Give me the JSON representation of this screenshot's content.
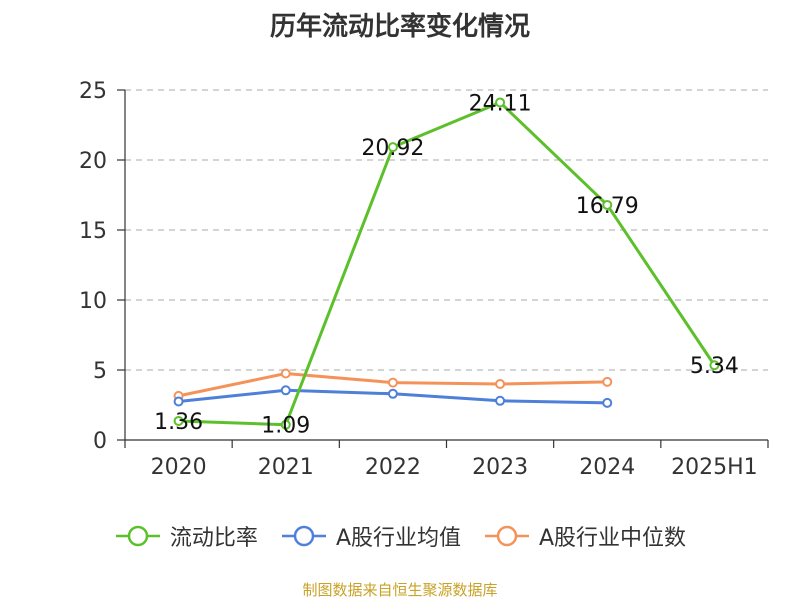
{
  "title": "历年流动比率变化情况",
  "source": "制图数据来自恒生聚源数据库",
  "colors": {
    "series": [
      "#5cc02b",
      "#4e7fd9",
      "#f5925a"
    ],
    "grid": "#bbbbbb",
    "axis": "#333333",
    "text": "#333333",
    "source": "#c9a227"
  },
  "chart_data": {
    "type": "line",
    "title": "历年流动比率变化情况",
    "categories": [
      "2020",
      "2021",
      "2022",
      "2023",
      "2024",
      "2025H1"
    ],
    "ylim": [
      0,
      25
    ],
    "yticks": [
      0,
      5,
      10,
      15,
      20,
      25
    ],
    "grid": true,
    "legend_position": "bottom",
    "series": [
      {
        "name": "流动比率",
        "values": [
          1.36,
          1.09,
          20.92,
          24.11,
          16.79,
          5.34
        ],
        "labels": true
      },
      {
        "name": "A股行业均值",
        "values": [
          2.75,
          3.55,
          3.3,
          2.8,
          2.65,
          null
        ],
        "labels": false
      },
      {
        "name": "A股行业中位数",
        "values": [
          3.15,
          4.75,
          4.1,
          4.0,
          4.15,
          null
        ],
        "labels": false
      }
    ]
  }
}
